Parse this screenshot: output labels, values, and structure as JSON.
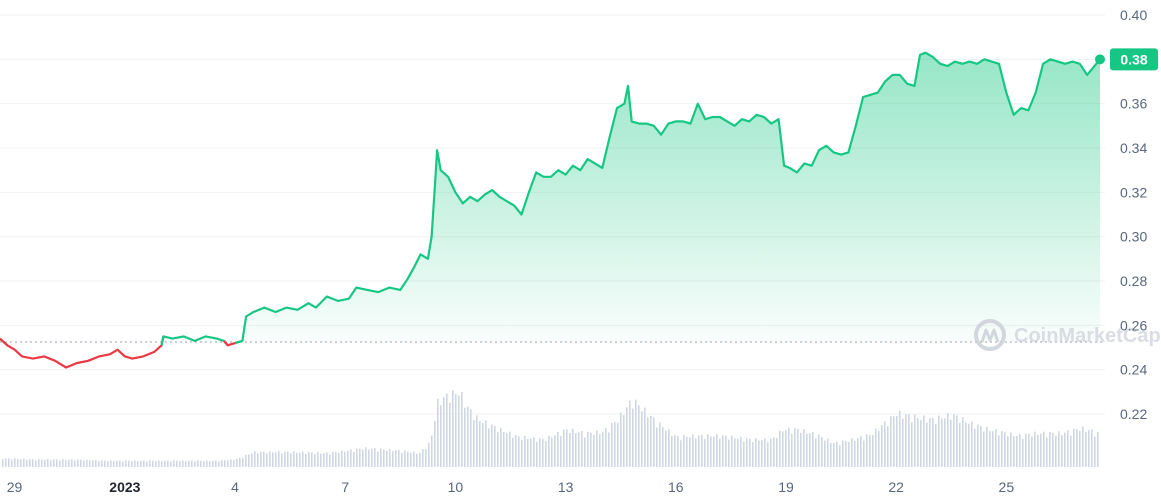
{
  "colors": {
    "up": "#16c784",
    "down": "#ea3943",
    "grid": "#eff2f5",
    "volume": "#cfd6e4",
    "text": "#58667e",
    "badge": "#16c784"
  },
  "watermark": "CoinMarketCap",
  "chart_data": {
    "type": "line",
    "ylim": [
      0.2,
      0.4
    ],
    "baseline": 0.2525,
    "current_value": "0.38",
    "y_ticks": [
      "0.40",
      "0.38",
      "0.36",
      "0.34",
      "0.32",
      "0.30",
      "0.28",
      "0.26",
      "0.24",
      "0.22"
    ],
    "y_tick_values": [
      0.4,
      0.38,
      0.36,
      0.34,
      0.32,
      0.3,
      0.28,
      0.26,
      0.24,
      0.22
    ],
    "x_ticks": [
      {
        "label": "29",
        "x": -3,
        "bold": false
      },
      {
        "label": "2023",
        "x": 0,
        "bold": true
      },
      {
        "label": "4",
        "x": 3,
        "bold": false
      },
      {
        "label": "7",
        "x": 6,
        "bold": false
      },
      {
        "label": "10",
        "x": 9,
        "bold": false
      },
      {
        "label": "13",
        "x": 12,
        "bold": false
      },
      {
        "label": "16",
        "x": 15,
        "bold": false
      },
      {
        "label": "19",
        "x": 18,
        "bold": false
      },
      {
        "label": "22",
        "x": 21,
        "bold": false
      },
      {
        "label": "25",
        "x": 24,
        "bold": false
      }
    ],
    "xlim": [
      -3.4,
      26.55
    ],
    "price": [
      [
        -3.4,
        0.254
      ],
      [
        -3.2,
        0.251
      ],
      [
        -3.0,
        0.249
      ],
      [
        -2.8,
        0.246
      ],
      [
        -2.5,
        0.245
      ],
      [
        -2.2,
        0.246
      ],
      [
        -1.9,
        0.244
      ],
      [
        -1.6,
        0.241
      ],
      [
        -1.3,
        0.243
      ],
      [
        -1.0,
        0.244
      ],
      [
        -0.7,
        0.246
      ],
      [
        -0.4,
        0.247
      ],
      [
        -0.2,
        0.249
      ],
      [
        0.0,
        0.246
      ],
      [
        0.2,
        0.245
      ],
      [
        0.5,
        0.246
      ],
      [
        0.8,
        0.248
      ],
      [
        1.0,
        0.251
      ],
      [
        1.05,
        0.255
      ],
      [
        1.3,
        0.254
      ],
      [
        1.6,
        0.255
      ],
      [
        1.9,
        0.253
      ],
      [
        2.2,
        0.255
      ],
      [
        2.5,
        0.254
      ],
      [
        2.7,
        0.253
      ],
      [
        2.8,
        0.251
      ],
      [
        3.0,
        0.252
      ],
      [
        3.2,
        0.253
      ],
      [
        3.3,
        0.264
      ],
      [
        3.5,
        0.266
      ],
      [
        3.8,
        0.268
      ],
      [
        4.1,
        0.266
      ],
      [
        4.4,
        0.268
      ],
      [
        4.7,
        0.267
      ],
      [
        5.0,
        0.27
      ],
      [
        5.2,
        0.268
      ],
      [
        5.5,
        0.273
      ],
      [
        5.8,
        0.271
      ],
      [
        6.1,
        0.272
      ],
      [
        6.3,
        0.277
      ],
      [
        6.6,
        0.276
      ],
      [
        6.9,
        0.275
      ],
      [
        7.2,
        0.277
      ],
      [
        7.5,
        0.276
      ],
      [
        7.7,
        0.281
      ],
      [
        7.9,
        0.287
      ],
      [
        8.05,
        0.292
      ],
      [
        8.25,
        0.29
      ],
      [
        8.35,
        0.3
      ],
      [
        8.45,
        0.325
      ],
      [
        8.5,
        0.339
      ],
      [
        8.6,
        0.33
      ],
      [
        8.8,
        0.327
      ],
      [
        9.0,
        0.32
      ],
      [
        9.2,
        0.315
      ],
      [
        9.4,
        0.318
      ],
      [
        9.6,
        0.316
      ],
      [
        9.8,
        0.319
      ],
      [
        10.0,
        0.321
      ],
      [
        10.2,
        0.318
      ],
      [
        10.4,
        0.316
      ],
      [
        10.6,
        0.314
      ],
      [
        10.8,
        0.31
      ],
      [
        11.0,
        0.32
      ],
      [
        11.2,
        0.329
      ],
      [
        11.4,
        0.327
      ],
      [
        11.6,
        0.327
      ],
      [
        11.8,
        0.33
      ],
      [
        12.0,
        0.328
      ],
      [
        12.2,
        0.332
      ],
      [
        12.4,
        0.33
      ],
      [
        12.6,
        0.335
      ],
      [
        12.8,
        0.333
      ],
      [
        13.0,
        0.331
      ],
      [
        13.2,
        0.345
      ],
      [
        13.4,
        0.358
      ],
      [
        13.6,
        0.36
      ],
      [
        13.7,
        0.368
      ],
      [
        13.8,
        0.352
      ],
      [
        14.0,
        0.351
      ],
      [
        14.2,
        0.351
      ],
      [
        14.4,
        0.35
      ],
      [
        14.6,
        0.346
      ],
      [
        14.8,
        0.351
      ],
      [
        15.0,
        0.352
      ],
      [
        15.2,
        0.352
      ],
      [
        15.4,
        0.351
      ],
      [
        15.6,
        0.36
      ],
      [
        15.8,
        0.353
      ],
      [
        16.0,
        0.354
      ],
      [
        16.2,
        0.354
      ],
      [
        16.4,
        0.352
      ],
      [
        16.6,
        0.35
      ],
      [
        16.8,
        0.353
      ],
      [
        17.0,
        0.352
      ],
      [
        17.2,
        0.355
      ],
      [
        17.4,
        0.354
      ],
      [
        17.6,
        0.351
      ],
      [
        17.8,
        0.353
      ],
      [
        17.95,
        0.332
      ],
      [
        18.1,
        0.331
      ],
      [
        18.3,
        0.329
      ],
      [
        18.5,
        0.333
      ],
      [
        18.7,
        0.332
      ],
      [
        18.9,
        0.339
      ],
      [
        19.1,
        0.341
      ],
      [
        19.3,
        0.338
      ],
      [
        19.5,
        0.337
      ],
      [
        19.7,
        0.338
      ],
      [
        19.9,
        0.35
      ],
      [
        20.1,
        0.363
      ],
      [
        20.3,
        0.364
      ],
      [
        20.5,
        0.365
      ],
      [
        20.7,
        0.37
      ],
      [
        20.9,
        0.373
      ],
      [
        21.1,
        0.373
      ],
      [
        21.3,
        0.369
      ],
      [
        21.5,
        0.368
      ],
      [
        21.65,
        0.382
      ],
      [
        21.8,
        0.383
      ],
      [
        22.0,
        0.381
      ],
      [
        22.2,
        0.378
      ],
      [
        22.4,
        0.377
      ],
      [
        22.6,
        0.379
      ],
      [
        22.8,
        0.378
      ],
      [
        23.0,
        0.379
      ],
      [
        23.2,
        0.378
      ],
      [
        23.4,
        0.38
      ],
      [
        23.6,
        0.379
      ],
      [
        23.8,
        0.378
      ],
      [
        24.0,
        0.365
      ],
      [
        24.2,
        0.355
      ],
      [
        24.4,
        0.358
      ],
      [
        24.6,
        0.357
      ],
      [
        24.8,
        0.365
      ],
      [
        25.0,
        0.378
      ],
      [
        25.2,
        0.38
      ],
      [
        25.4,
        0.379
      ],
      [
        25.6,
        0.378
      ],
      [
        25.8,
        0.379
      ],
      [
        26.0,
        0.378
      ],
      [
        26.2,
        0.373
      ],
      [
        26.35,
        0.376
      ],
      [
        26.55,
        0.38
      ]
    ],
    "volume": [
      [
        -3.4,
        0.07
      ],
      [
        -2.5,
        0.06
      ],
      [
        -1.5,
        0.06
      ],
      [
        -0.5,
        0.05
      ],
      [
        0.5,
        0.05
      ],
      [
        1.5,
        0.05
      ],
      [
        2.5,
        0.05
      ],
      [
        3.0,
        0.06
      ],
      [
        3.5,
        0.12
      ],
      [
        4.5,
        0.12
      ],
      [
        5.5,
        0.11
      ],
      [
        6.5,
        0.15
      ],
      [
        7.5,
        0.13
      ],
      [
        8.0,
        0.11
      ],
      [
        8.3,
        0.2
      ],
      [
        8.5,
        0.52
      ],
      [
        8.8,
        0.58
      ],
      [
        9.1,
        0.6
      ],
      [
        9.3,
        0.48
      ],
      [
        9.6,
        0.38
      ],
      [
        10.2,
        0.3
      ],
      [
        10.7,
        0.24
      ],
      [
        11.4,
        0.22
      ],
      [
        12.0,
        0.3
      ],
      [
        12.5,
        0.27
      ],
      [
        13.0,
        0.28
      ],
      [
        13.4,
        0.38
      ],
      [
        13.8,
        0.54
      ],
      [
        14.1,
        0.46
      ],
      [
        14.5,
        0.35
      ],
      [
        15.0,
        0.24
      ],
      [
        15.6,
        0.25
      ],
      [
        16.2,
        0.25
      ],
      [
        17.0,
        0.22
      ],
      [
        17.6,
        0.22
      ],
      [
        17.9,
        0.3
      ],
      [
        18.3,
        0.3
      ],
      [
        18.8,
        0.26
      ],
      [
        19.3,
        0.19
      ],
      [
        19.8,
        0.22
      ],
      [
        20.3,
        0.26
      ],
      [
        20.7,
        0.36
      ],
      [
        21.0,
        0.43
      ],
      [
        21.5,
        0.4
      ],
      [
        22.0,
        0.38
      ],
      [
        22.5,
        0.42
      ],
      [
        23.0,
        0.35
      ],
      [
        23.5,
        0.3
      ],
      [
        24.0,
        0.27
      ],
      [
        24.3,
        0.25
      ],
      [
        24.8,
        0.27
      ],
      [
        25.5,
        0.27
      ],
      [
        26.0,
        0.31
      ],
      [
        26.3,
        0.29
      ],
      [
        26.55,
        0.26
      ]
    ]
  }
}
